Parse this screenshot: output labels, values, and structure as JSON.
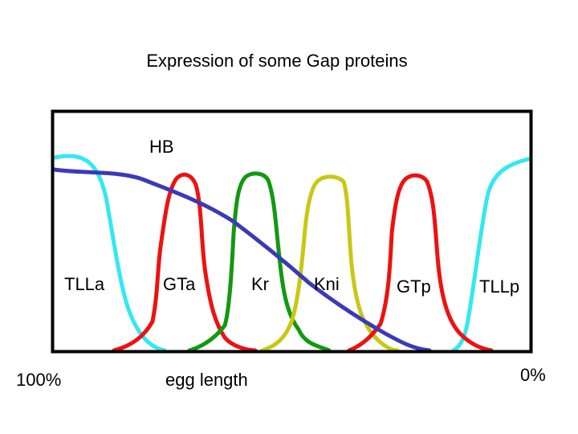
{
  "title": "Expression of some Gap proteins",
  "x_axis": {
    "left_label": "100%",
    "center_label": "egg length",
    "right_label": "0%"
  },
  "colors": {
    "frame": "#000000",
    "HB": "#3a3ab8",
    "TLL": "#33e8f2",
    "GT": "#ee1111",
    "Kr": "#119911",
    "Kni": "#c8c814"
  },
  "curves": [
    {
      "name": "HB",
      "label": "HB",
      "color_key": "HB"
    },
    {
      "name": "TLLa",
      "label": "TLLa",
      "color_key": "TLL"
    },
    {
      "name": "GTa",
      "label": "GTa",
      "color_key": "GT"
    },
    {
      "name": "Kr",
      "label": "Kr",
      "color_key": "Kr"
    },
    {
      "name": "Kni",
      "label": "Kni",
      "color_key": "Kni"
    },
    {
      "name": "GTp",
      "label": "GTp",
      "color_key": "GT"
    },
    {
      "name": "TLLp",
      "label": "TLLp",
      "color_key": "TLL"
    }
  ]
}
